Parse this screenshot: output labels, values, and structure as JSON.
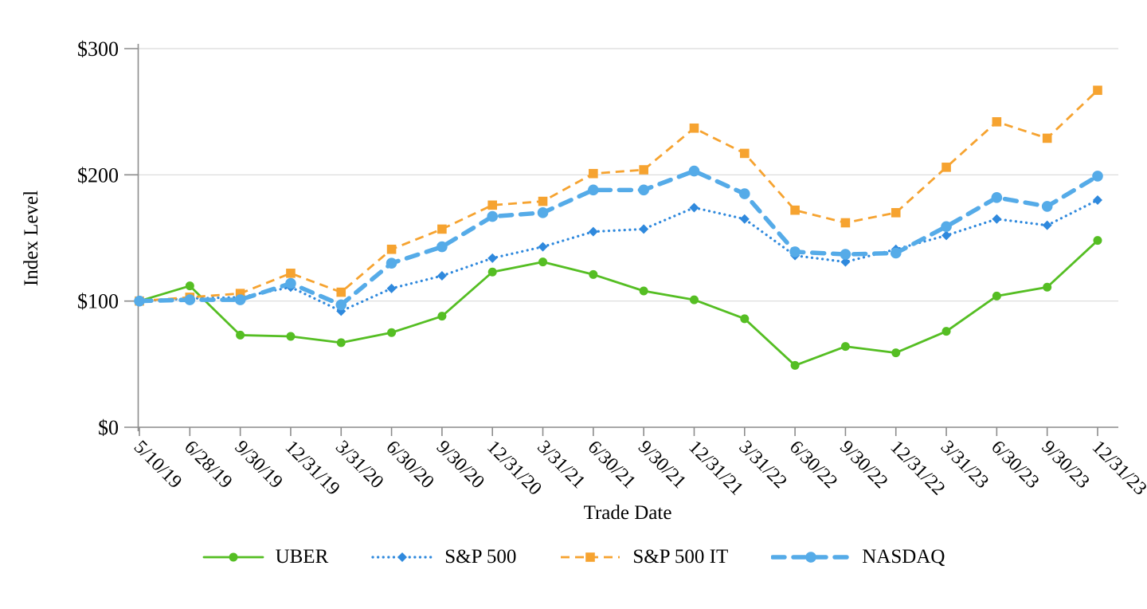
{
  "page": {
    "background_color": "#FFFFFF",
    "text_color": "#000000",
    "axis_color": "#8C8C8C",
    "gridline_color": "#D9D9D9"
  },
  "chart_data": {
    "type": "line",
    "title": "",
    "xlabel": "Trade Date",
    "ylabel": "Index Level",
    "ylim": [
      0,
      300
    ],
    "ytick_values": [
      0,
      100,
      200,
      300
    ],
    "ytick_labels": [
      "$0",
      "$100",
      "$200",
      "$300"
    ],
    "grid": true,
    "legend_position": "bottom",
    "categories": [
      "5/10/19",
      "6/28/19",
      "9/30/19",
      "12/31/19",
      "3/31/20",
      "6/30/20",
      "9/30/20",
      "12/31/20",
      "3/31/21",
      "6/30/21",
      "9/30/21",
      "12/31/21",
      "3/31/22",
      "6/30/22",
      "9/30/22",
      "12/31/22",
      "3/31/23",
      "6/30/23",
      "9/30/23",
      "12/31/23"
    ],
    "series": [
      {
        "name": "UBER",
        "color": "#55BE23",
        "line": "solid",
        "marker": "circle",
        "values": [
          100,
          112,
          73,
          72,
          67,
          75,
          88,
          123,
          131,
          121,
          108,
          101,
          86,
          49,
          64,
          59,
          76,
          104,
          111,
          148
        ]
      },
      {
        "name": "S&P 500",
        "color": "#2F89DD",
        "line": "dotted",
        "marker": "diamond",
        "values": [
          100,
          102,
          103,
          111,
          92,
          110,
          120,
          134,
          143,
          155,
          157,
          174,
          165,
          136,
          131,
          141,
          152,
          165,
          160,
          180
        ]
      },
      {
        "name": "S&P 500 IT",
        "color": "#F6A330",
        "line": "dashed",
        "marker": "square",
        "values": [
          100,
          103,
          106,
          122,
          107,
          141,
          157,
          176,
          179,
          201,
          204,
          237,
          217,
          172,
          162,
          170,
          206,
          242,
          229,
          267
        ]
      },
      {
        "name": "NASDAQ",
        "color": "#55ABE8",
        "line": "long-dash-thick",
        "marker": "circle-large",
        "values": [
          100,
          101,
          101,
          114,
          97,
          130,
          143,
          167,
          170,
          188,
          188,
          203,
          185,
          139,
          137,
          138,
          159,
          182,
          175,
          199
        ]
      }
    ]
  }
}
